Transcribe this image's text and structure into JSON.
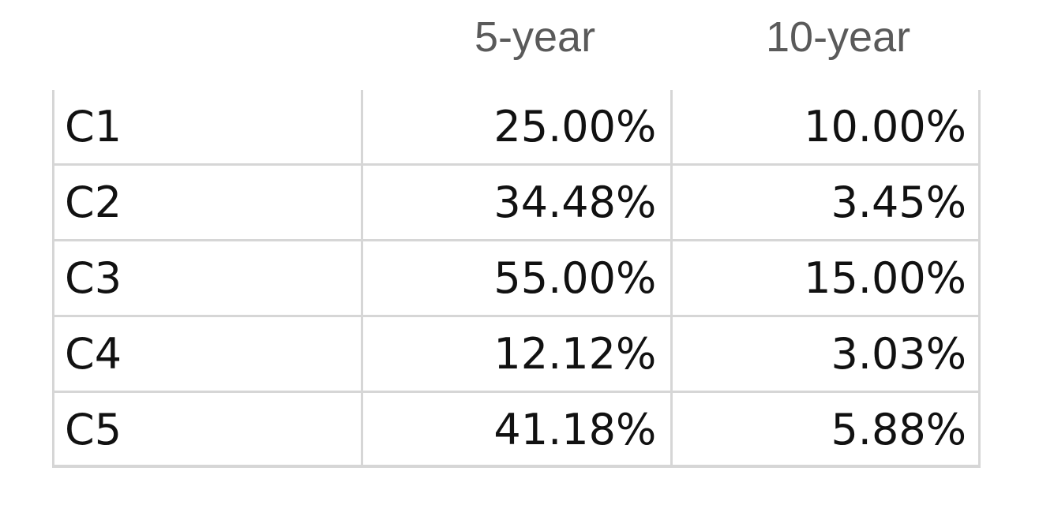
{
  "chart_data": {
    "type": "table",
    "columns": [
      "",
      "5-year",
      "10-year"
    ],
    "rows": [
      {
        "label": "C1",
        "five_year": "25.00%",
        "ten_year": "10.00%"
      },
      {
        "label": "C2",
        "five_year": "34.48%",
        "ten_year": "3.45%"
      },
      {
        "label": "C3",
        "five_year": "55.00%",
        "ten_year": "15.00%"
      },
      {
        "label": "C4",
        "five_year": "12.12%",
        "ten_year": "3.03%"
      },
      {
        "label": "C5",
        "five_year": "41.18%",
        "ten_year": "5.88%"
      }
    ]
  },
  "colors": {
    "header_text": "#5a5a5a",
    "cell_text": "#111111",
    "grid_line": "#d6d6d6"
  }
}
